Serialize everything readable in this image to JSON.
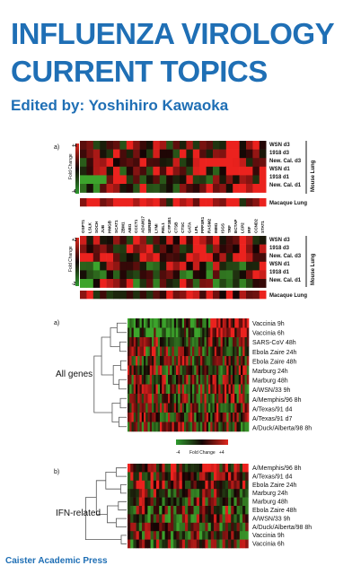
{
  "cover": {
    "title_line1": "INFLUENZA VIROLOGY",
    "title_line2": "CURRENT TOPICS",
    "editor": "Edited by: Yoshihiro Kawaoka",
    "publisher": "Caister Academic Press"
  },
  "figure_top": {
    "panel_letter": "a)",
    "heatmap1_rows": [
      "WSN d3",
      "1918 d3",
      "New. Cal. d3",
      "WSN d1",
      "1918 d1",
      "New. Cal. d1"
    ],
    "heatmap1_bar": "Macaque Lung",
    "heatmap2_rows": [
      "WSN d3",
      "1918 d3",
      "New. Cal. d3",
      "WSN d1",
      "1918 d1",
      "New. Cal. d1"
    ],
    "heatmap2_bar": "Macaque Lung",
    "group_label": "Mouse Lung",
    "scale1": {
      "title": "Fold Change",
      "top": "+4",
      "bottom": "-4"
    },
    "scale2": {
      "title": "Fold Change",
      "top": "+2",
      "bottom": "-2"
    },
    "gene_labels": [
      "OSPT1",
      "LSLK",
      "SOCH",
      "JUB",
      "HMGB",
      "SCAT1",
      "ZBM1",
      "ABI1",
      "CCCT1",
      "ADAM17",
      "SERBP",
      "LYMI",
      "REL1",
      "CYP1B1",
      "CTSB",
      "CTSC",
      "GATA",
      "LPL",
      "PPPSR1",
      "RASM2",
      "IMM1",
      "ISGS",
      "TRF",
      "BCTAP",
      "LCP2",
      "IRF",
      "CCND2",
      "STAT1"
    ],
    "red_gene_labels_from_index": 20
  },
  "figure_middle": {
    "panel_letter": "a)",
    "group_label": "All genes",
    "rows": [
      "Vaccinia 9h",
      "Vaccinia 6h",
      "SARS-CoV 48h",
      "Ebola Zaire 24h",
      "Ebola Zaire 48h",
      "Marburg 24h",
      "Marburg 48h",
      "A/WSN/33 9h",
      "A/Memphis/96 8h",
      "A/Texas/91 d4",
      "A/Texas/91 d7",
      "A/Duck/Alberta/98 8h"
    ],
    "scale": {
      "low": "-4",
      "title": "Fold Change",
      "high": "+4"
    }
  },
  "figure_bottom": {
    "panel_letter": "b)",
    "group_label": "IFN-related",
    "rows": [
      "A/Memphis/96 8h",
      "A/Texas/91 d4",
      "Ebola Zaire 24h",
      "Marburg 24h",
      "Marburg 48h",
      "Ebola Zaire 48h",
      "A/WSN/33 9h",
      "A/Duck/Alberta/98 8h",
      "Vaccinia 9h",
      "Vaccinia 6h"
    ]
  },
  "colors": {
    "title_blue": "#1f6fb5",
    "heat_red": "#e0281e",
    "heat_green": "#2e9a2e",
    "heat_black": "#140404"
  }
}
